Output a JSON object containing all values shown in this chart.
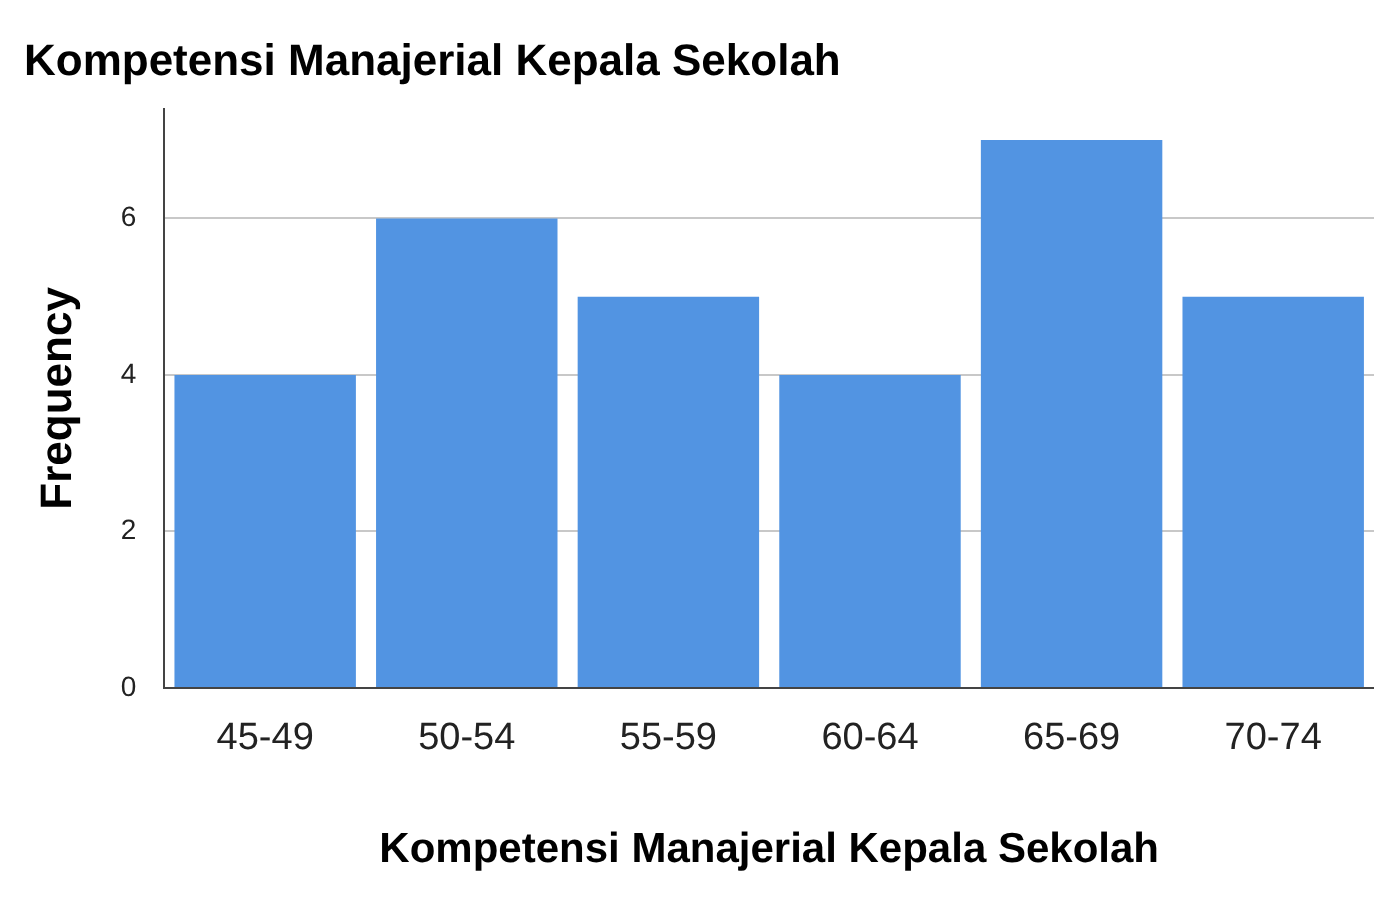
{
  "chart_data": {
    "type": "bar",
    "title": "Kompetensi Manajerial Kepala Sekolah",
    "xlabel": "Kompetensi Manajerial Kepala Sekolah",
    "ylabel": "Frequency",
    "categories": [
      "45-49",
      "50-54",
      "55-59",
      "60-64",
      "65-69",
      "70-74"
    ],
    "values": [
      4,
      6,
      5,
      4,
      7,
      5
    ],
    "color": "#5294e2",
    "ylim": [
      0,
      7.4
    ],
    "yticks": [
      0,
      2,
      4,
      6
    ],
    "grid": "y",
    "legend": false
  }
}
